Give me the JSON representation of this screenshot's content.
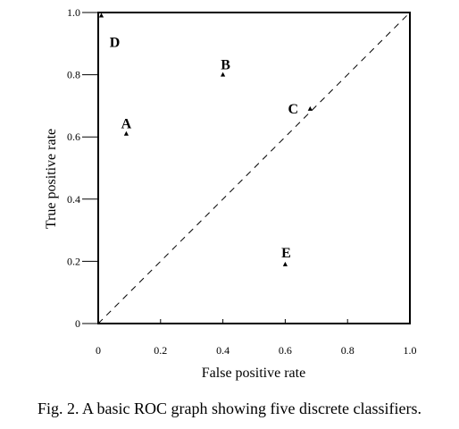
{
  "chart_data": {
    "type": "scatter",
    "xlabel": "False positive rate",
    "ylabel": "True positive rate",
    "xlim": [
      0,
      1
    ],
    "ylim": [
      0,
      1
    ],
    "x_ticks": [
      "0",
      "0.2",
      "0.4",
      "0.6",
      "0.8",
      "1.0"
    ],
    "y_ticks": [
      "0",
      "0.2",
      "0.4",
      "0.6",
      "0.8",
      "1.0"
    ],
    "grid": false,
    "legend": "none",
    "reference_line": {
      "style": "dashed",
      "from": [
        0,
        0
      ],
      "to": [
        1,
        1
      ]
    },
    "points": [
      {
        "label": "A",
        "x": 0.09,
        "y": 0.61
      },
      {
        "label": "B",
        "x": 0.4,
        "y": 0.8
      },
      {
        "label": "C",
        "x": 0.68,
        "y": 0.69
      },
      {
        "label": "D",
        "x": 0.01,
        "y": 0.99
      },
      {
        "label": "E",
        "x": 0.6,
        "y": 0.19
      }
    ]
  },
  "caption": "Fig. 2.  A basic ROC graph showing five discrete classifiers."
}
